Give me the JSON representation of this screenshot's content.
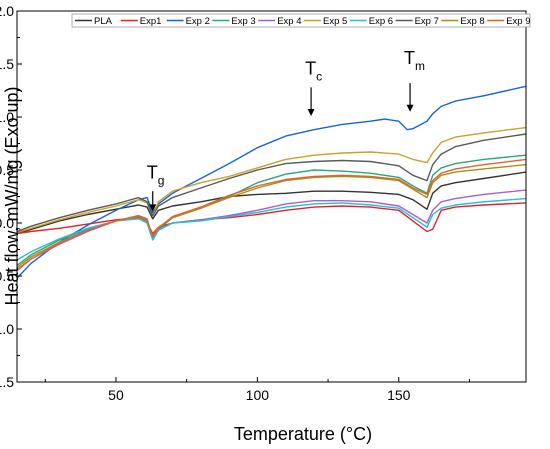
{
  "chart_data": {
    "type": "line",
    "xlabel": "Temperature (°C)",
    "ylabel": "Heat flow, mW/mg (Exo up)",
    "xlim": [
      15,
      195
    ],
    "ylim": [
      -1.5,
      2.0
    ],
    "x_ticks": [
      50,
      100,
      150
    ],
    "y_ticks": [
      -1.5,
      -1.0,
      -0.5,
      0.0,
      0.5,
      1.0,
      1.5,
      2.0
    ],
    "grid": false,
    "legend_position": "top",
    "annotations": [
      {
        "main": "T",
        "sub": "g",
        "x": 63,
        "y": 0.42,
        "arrow_from": 0.3,
        "arrow_to": 0.11
      },
      {
        "main": "T",
        "sub": "c",
        "x": 119,
        "y": 1.4,
        "arrow_from": 1.28,
        "arrow_to": 1.01
      },
      {
        "main": "T",
        "sub": "m",
        "x": 154,
        "y": 1.5,
        "arrow_from": 1.32,
        "arrow_to": 1.05
      }
    ],
    "series": [
      {
        "name": "PLA",
        "color": "#333333",
        "x": [
          15,
          20,
          30,
          40,
          50,
          58,
          61,
          63,
          65,
          70,
          80,
          90,
          100,
          110,
          120,
          130,
          140,
          150,
          155,
          160,
          162,
          165,
          170,
          180,
          195
        ],
        "y": [
          -0.1,
          -0.06,
          0.02,
          0.08,
          0.13,
          0.17,
          0.15,
          0.04,
          0.12,
          0.16,
          0.2,
          0.25,
          0.27,
          0.28,
          0.3,
          0.3,
          0.29,
          0.27,
          0.22,
          0.13,
          0.28,
          0.35,
          0.38,
          0.42,
          0.48
        ]
      },
      {
        "name": "Exp1",
        "color": "#e8202a",
        "x": [
          15,
          20,
          30,
          40,
          50,
          58,
          61,
          63,
          65,
          70,
          80,
          90,
          100,
          110,
          120,
          130,
          140,
          150,
          155,
          160,
          162,
          165,
          170,
          180,
          195
        ],
        "y": [
          -0.1,
          -0.08,
          -0.05,
          -0.01,
          0.03,
          0.05,
          0.0,
          -0.1,
          -0.04,
          0.0,
          0.03,
          0.05,
          0.08,
          0.12,
          0.15,
          0.16,
          0.15,
          0.12,
          0.02,
          -0.08,
          -0.06,
          0.12,
          0.15,
          0.17,
          0.19
        ]
      },
      {
        "name": "Exp 2",
        "color": "#1565d8",
        "x": [
          15,
          20,
          30,
          40,
          50,
          58,
          61,
          63,
          65,
          70,
          80,
          90,
          100,
          110,
          120,
          130,
          140,
          145,
          150,
          153,
          155,
          160,
          162,
          165,
          170,
          180,
          195
        ],
        "y": [
          -0.52,
          -0.38,
          -0.18,
          -0.02,
          0.12,
          0.22,
          0.24,
          0.1,
          0.18,
          0.28,
          0.42,
          0.56,
          0.71,
          0.82,
          0.88,
          0.93,
          0.96,
          0.98,
          0.96,
          0.88,
          0.89,
          0.96,
          1.03,
          1.1,
          1.15,
          1.2,
          1.29
        ]
      },
      {
        "name": "Exp 3",
        "color": "#2aa876",
        "x": [
          15,
          20,
          30,
          40,
          50,
          58,
          61,
          63,
          65,
          70,
          80,
          90,
          100,
          110,
          120,
          130,
          140,
          150,
          155,
          160,
          162,
          165,
          170,
          180,
          195
        ],
        "y": [
          -0.4,
          -0.3,
          -0.16,
          -0.06,
          0.02,
          0.07,
          0.04,
          -0.15,
          -0.06,
          0.05,
          0.14,
          0.25,
          0.38,
          0.46,
          0.5,
          0.49,
          0.47,
          0.43,
          0.35,
          0.28,
          0.45,
          0.52,
          0.56,
          0.6,
          0.64
        ]
      },
      {
        "name": "Exp 4",
        "color": "#a55fd6",
        "x": [
          15,
          20,
          30,
          40,
          50,
          58,
          61,
          63,
          65,
          70,
          80,
          90,
          100,
          110,
          120,
          130,
          140,
          150,
          155,
          160,
          162,
          165,
          170,
          180,
          195
        ],
        "y": [
          -0.45,
          -0.34,
          -0.2,
          -0.08,
          0.02,
          0.06,
          0.01,
          -0.15,
          -0.06,
          0.0,
          0.03,
          0.07,
          0.12,
          0.18,
          0.21,
          0.21,
          0.2,
          0.16,
          0.08,
          0.0,
          0.12,
          0.2,
          0.23,
          0.27,
          0.31
        ]
      },
      {
        "name": "Exp 5",
        "color": "#c9a227",
        "x": [
          15,
          20,
          30,
          40,
          50,
          58,
          61,
          63,
          65,
          70,
          80,
          90,
          100,
          110,
          120,
          130,
          140,
          150,
          155,
          160,
          162,
          165,
          170,
          180,
          195
        ],
        "y": [
          -0.09,
          -0.05,
          0.03,
          0.1,
          0.16,
          0.22,
          0.19,
          0.07,
          0.2,
          0.3,
          0.38,
          0.44,
          0.52,
          0.6,
          0.64,
          0.66,
          0.67,
          0.65,
          0.6,
          0.57,
          0.66,
          0.76,
          0.81,
          0.85,
          0.9
        ]
      },
      {
        "name": "Exp 6",
        "color": "#22c1cf",
        "x": [
          15,
          20,
          30,
          40,
          50,
          58,
          61,
          63,
          65,
          70,
          80,
          90,
          100,
          110,
          120,
          130,
          140,
          150,
          155,
          160,
          162,
          165,
          170,
          180,
          195
        ],
        "y": [
          -0.35,
          -0.27,
          -0.15,
          -0.05,
          0.02,
          0.04,
          0.0,
          -0.16,
          -0.07,
          0.0,
          0.02,
          0.06,
          0.1,
          0.15,
          0.18,
          0.19,
          0.17,
          0.14,
          0.05,
          -0.04,
          0.08,
          0.14,
          0.17,
          0.2,
          0.23
        ]
      },
      {
        "name": "Exp 7",
        "color": "#5a5a5a",
        "x": [
          15,
          20,
          30,
          40,
          50,
          58,
          61,
          63,
          65,
          70,
          80,
          90,
          100,
          110,
          120,
          130,
          140,
          150,
          155,
          160,
          162,
          165,
          170,
          180,
          195
        ],
        "y": [
          -0.08,
          -0.03,
          0.05,
          0.12,
          0.18,
          0.24,
          0.2,
          0.07,
          0.16,
          0.24,
          0.33,
          0.42,
          0.5,
          0.56,
          0.58,
          0.59,
          0.58,
          0.54,
          0.45,
          0.4,
          0.55,
          0.65,
          0.72,
          0.78,
          0.84
        ]
      },
      {
        "name": "Exp 8",
        "color": "#a88f1a",
        "x": [
          15,
          20,
          30,
          40,
          50,
          58,
          61,
          63,
          65,
          70,
          80,
          90,
          100,
          110,
          120,
          130,
          140,
          150,
          155,
          160,
          162,
          165,
          170,
          180,
          195
        ],
        "y": [
          -0.42,
          -0.32,
          -0.18,
          -0.07,
          0.02,
          0.06,
          0.02,
          -0.12,
          -0.04,
          0.05,
          0.14,
          0.24,
          0.33,
          0.4,
          0.43,
          0.44,
          0.43,
          0.4,
          0.32,
          0.24,
          0.38,
          0.45,
          0.48,
          0.51,
          0.55
        ]
      },
      {
        "name": "Exp 9",
        "color": "#e8602c",
        "x": [
          15,
          20,
          30,
          40,
          50,
          58,
          61,
          63,
          65,
          70,
          80,
          90,
          100,
          110,
          120,
          130,
          140,
          150,
          155,
          160,
          162,
          165,
          170,
          180,
          195
        ],
        "y": [
          -0.44,
          -0.34,
          -0.19,
          -0.07,
          0.02,
          0.07,
          0.03,
          -0.13,
          -0.05,
          0.06,
          0.15,
          0.26,
          0.35,
          0.41,
          0.44,
          0.45,
          0.44,
          0.41,
          0.33,
          0.27,
          0.4,
          0.47,
          0.51,
          0.55,
          0.6
        ]
      }
    ]
  }
}
